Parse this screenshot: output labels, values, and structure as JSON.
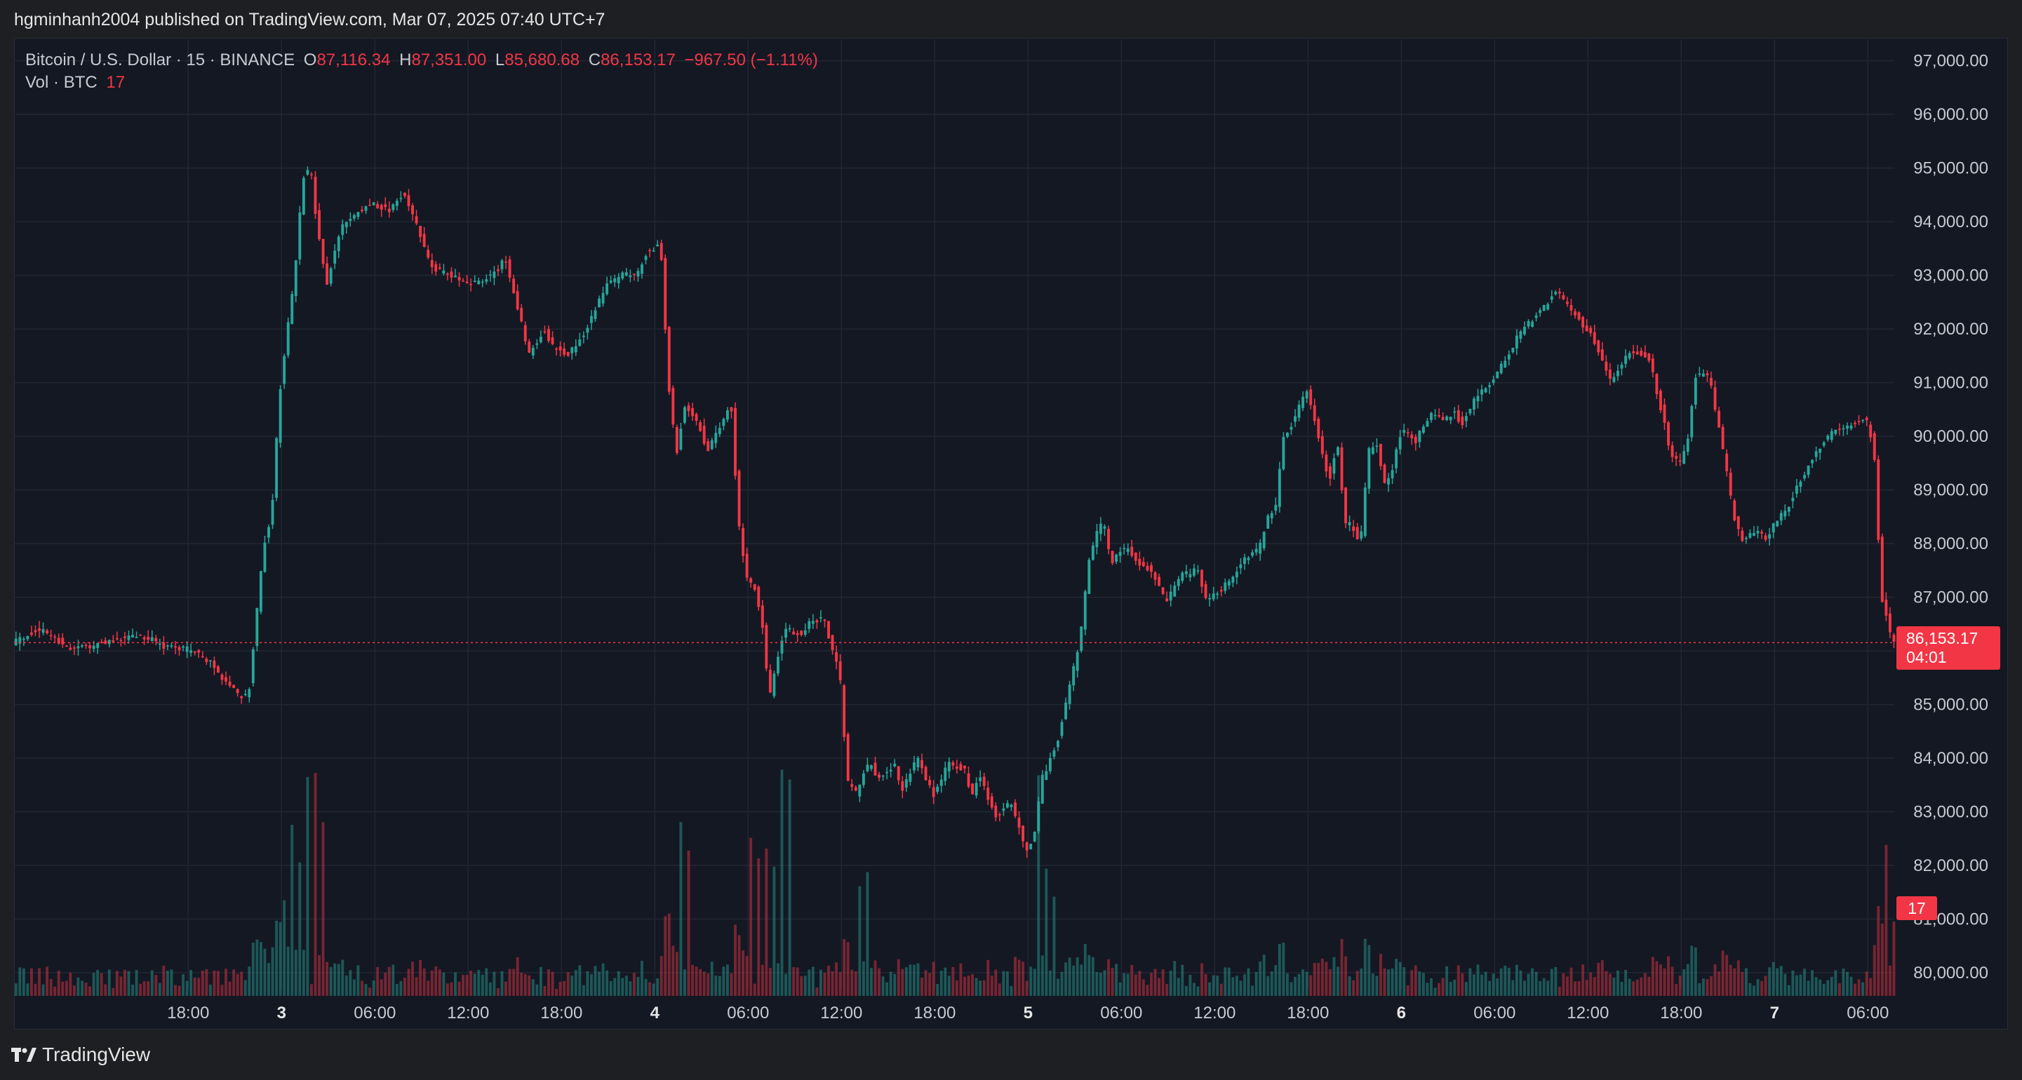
{
  "publisher_text": "hgminhanh2004 published on TradingView.com, Mar 07, 2025 07:40 UTC+7",
  "legend": {
    "symbol": "Bitcoin / U.S. Dollar · 15 · BINANCE",
    "o_label": "O",
    "o_value": "87,116.34",
    "h_label": "H",
    "h_value": "87,351.00",
    "l_label": "L",
    "l_value": "85,680.68",
    "c_label": "C",
    "c_value": "86,153.17",
    "change": "−967.50 (−1.11%)",
    "vol_label": "Vol · BTC",
    "vol_value": "17"
  },
  "last_price_badge": {
    "price": "86,153.17",
    "countdown": "04:01"
  },
  "volume_badge": "17",
  "footer_brand": "TradingView",
  "colors": {
    "up": "#26a69a",
    "down": "#f23645",
    "background": "#141823",
    "grid": "#232734"
  },
  "chart_data": {
    "type": "candlestick",
    "title": "Bitcoin / U.S. Dollar · 15 · BINANCE",
    "interval": "15",
    "y_axis": {
      "side": "right",
      "ticks": [
        "97,000.00",
        "96,000.00",
        "95,000.00",
        "94,000.00",
        "93,000.00",
        "92,000.00",
        "91,000.00",
        "90,000.00",
        "89,000.00",
        "88,000.00",
        "87,000.00",
        "86,000.00",
        "85,000.00",
        "84,000.00",
        "83,000.00",
        "82,000.00",
        "81,000.00",
        "80,000.00"
      ],
      "ylim": [
        79700,
        97400
      ]
    },
    "x_axis": {
      "ticks": [
        "18:00",
        "3",
        "06:00",
        "12:00",
        "18:00",
        "4",
        "06:00",
        "12:00",
        "18:00",
        "5",
        "06:00",
        "12:00",
        "18:00",
        "6",
        "06:00",
        "12:00",
        "18:00",
        "7",
        "06:00"
      ],
      "tick_hours": [
        18,
        24,
        30,
        36,
        42,
        48,
        54,
        60,
        66,
        72,
        78,
        84,
        90,
        96,
        102,
        108,
        114,
        120,
        126
      ],
      "xlim_hours": [
        6.8,
        127.7
      ]
    },
    "grid": true,
    "last_price": 86153.17,
    "price_path": [
      [
        6.8,
        86150
      ],
      [
        8.5,
        86400
      ],
      [
        9.5,
        86250
      ],
      [
        10.5,
        86050
      ],
      [
        12,
        86100
      ],
      [
        13.5,
        86200
      ],
      [
        15,
        86300
      ],
      [
        16.5,
        86100
      ],
      [
        17.5,
        86050
      ],
      [
        18.5,
        86000
      ],
      [
        19.5,
        85800
      ],
      [
        20.5,
        85450
      ],
      [
        21.5,
        85150
      ],
      [
        22,
        85200
      ],
      [
        22.5,
        86600
      ],
      [
        23,
        88000
      ],
      [
        23.5,
        88600
      ],
      [
        24,
        90800
      ],
      [
        24.5,
        92000
      ],
      [
        25,
        93100
      ],
      [
        25.5,
        94800
      ],
      [
        26,
        95000
      ],
      [
        26.3,
        94200
      ],
      [
        27,
        92800
      ],
      [
        27.5,
        93400
      ],
      [
        28,
        93900
      ],
      [
        29,
        94200
      ],
      [
        30,
        94350
      ],
      [
        31,
        94200
      ],
      [
        32,
        94550
      ],
      [
        33,
        93800
      ],
      [
        33.5,
        93300
      ],
      [
        34,
        93100
      ],
      [
        35,
        93000
      ],
      [
        36,
        92800
      ],
      [
        37,
        92900
      ],
      [
        38,
        93100
      ],
      [
        38.5,
        93300
      ],
      [
        39.5,
        92200
      ],
      [
        40,
        91500
      ],
      [
        41,
        92000
      ],
      [
        41.5,
        91700
      ],
      [
        42.5,
        91500
      ],
      [
        43.5,
        91900
      ],
      [
        44.5,
        92500
      ],
      [
        45,
        92800
      ],
      [
        46,
        93000
      ],
      [
        47,
        93000
      ],
      [
        47.5,
        93400
      ],
      [
        48.5,
        93600
      ],
      [
        49,
        91000
      ],
      [
        49.5,
        89600
      ],
      [
        50,
        90600
      ],
      [
        51,
        90200
      ],
      [
        51.5,
        89700
      ],
      [
        52.5,
        90300
      ],
      [
        53,
        90700
      ],
      [
        53.5,
        88400
      ],
      [
        54,
        87400
      ],
      [
        54.5,
        87200
      ],
      [
        55,
        86600
      ],
      [
        55.5,
        85100
      ],
      [
        56,
        85900
      ],
      [
        56.5,
        86400
      ],
      [
        57.5,
        86300
      ],
      [
        58,
        86500
      ],
      [
        59,
        86600
      ],
      [
        59.5,
        86000
      ],
      [
        60,
        85600
      ],
      [
        60.5,
        83600
      ],
      [
        61,
        83300
      ],
      [
        61.5,
        83700
      ],
      [
        62,
        83900
      ],
      [
        62.5,
        83600
      ],
      [
        63.5,
        83900
      ],
      [
        64,
        83400
      ],
      [
        65,
        84000
      ],
      [
        66,
        83300
      ],
      [
        67,
        83900
      ],
      [
        68,
        83800
      ],
      [
        68.5,
        83300
      ],
      [
        69,
        83700
      ],
      [
        70,
        82900
      ],
      [
        71,
        83200
      ],
      [
        72,
        82300
      ],
      [
        72.5,
        82500
      ],
      [
        73,
        83600
      ],
      [
        74,
        84300
      ],
      [
        75,
        85600
      ],
      [
        75.5,
        86300
      ],
      [
        76,
        87600
      ],
      [
        76.5,
        88200
      ],
      [
        77,
        88400
      ],
      [
        77.5,
        87600
      ],
      [
        78,
        87900
      ],
      [
        78.5,
        87900
      ],
      [
        79,
        87700
      ],
      [
        80,
        87500
      ],
      [
        81,
        86900
      ],
      [
        82,
        87400
      ],
      [
        83,
        87500
      ],
      [
        83.5,
        87000
      ],
      [
        84,
        87000
      ],
      [
        85,
        87300
      ],
      [
        86,
        87700
      ],
      [
        87,
        87900
      ],
      [
        87.5,
        88500
      ],
      [
        88,
        88600
      ],
      [
        88.5,
        90000
      ],
      [
        89,
        90200
      ],
      [
        89.5,
        90500
      ],
      [
        90,
        90900
      ],
      [
        90.5,
        90400
      ],
      [
        91,
        89700
      ],
      [
        91.5,
        89200
      ],
      [
        92,
        89900
      ],
      [
        92.5,
        88400
      ],
      [
        93,
        88300
      ],
      [
        93.5,
        88000
      ],
      [
        94,
        89700
      ],
      [
        94.5,
        89900
      ],
      [
        95,
        89100
      ],
      [
        95.5,
        89300
      ],
      [
        96,
        90000
      ],
      [
        96.5,
        90100
      ],
      [
        97,
        89900
      ],
      [
        98,
        90400
      ],
      [
        99,
        90300
      ],
      [
        99.5,
        90500
      ],
      [
        100,
        90200
      ],
      [
        101,
        90800
      ],
      [
        102,
        91000
      ],
      [
        102.5,
        91300
      ],
      [
        103,
        91500
      ],
      [
        103.5,
        91800
      ],
      [
        104,
        92000
      ],
      [
        105,
        92300
      ],
      [
        106,
        92700
      ],
      [
        107,
        92400
      ],
      [
        108,
        92000
      ],
      [
        108.5,
        91800
      ],
      [
        109,
        91500
      ],
      [
        109.5,
        91000
      ],
      [
        110,
        91200
      ],
      [
        110.5,
        91500
      ],
      [
        111,
        91600
      ],
      [
        112,
        91500
      ],
      [
        112.5,
        90900
      ],
      [
        113,
        90300
      ],
      [
        113.5,
        89600
      ],
      [
        114,
        89500
      ],
      [
        114.5,
        89800
      ],
      [
        115,
        91100
      ],
      [
        115.5,
        91200
      ],
      [
        116,
        91000
      ],
      [
        116.5,
        90200
      ],
      [
        117,
        89400
      ],
      [
        117.5,
        88500
      ],
      [
        118,
        88100
      ],
      [
        119,
        88200
      ],
      [
        119.5,
        88100
      ],
      [
        120,
        88300
      ],
      [
        121,
        88700
      ],
      [
        121.5,
        89000
      ],
      [
        122,
        89300
      ],
      [
        123,
        89800
      ],
      [
        124,
        90100
      ],
      [
        125,
        90200
      ],
      [
        125.5,
        90300
      ],
      [
        126,
        90300
      ],
      [
        126.5,
        89800
      ],
      [
        127,
        87000
      ],
      [
        127.7,
        86153
      ]
    ],
    "volume": {
      "unit": "BTC",
      "last_value": 17,
      "spikes": [
        [
          25.5,
          420
        ],
        [
          26,
          480
        ],
        [
          26.5,
          380
        ],
        [
          24.5,
          310
        ],
        [
          25,
          300
        ],
        [
          24,
          210
        ],
        [
          49.5,
          370
        ],
        [
          50,
          320
        ],
        [
          56,
          360
        ],
        [
          56.5,
          330
        ],
        [
          55.5,
          300
        ],
        [
          54,
          250
        ],
        [
          54.5,
          280
        ],
        [
          55,
          230
        ],
        [
          61,
          230
        ],
        [
          61.5,
          200
        ],
        [
          73,
          200
        ],
        [
          73.5,
          170
        ],
        [
          72.5,
          420
        ],
        [
          127,
          330
        ],
        [
          127.5,
          150
        ]
      ]
    },
    "last_price_label": "86,153.17",
    "countdown": "04:01"
  }
}
